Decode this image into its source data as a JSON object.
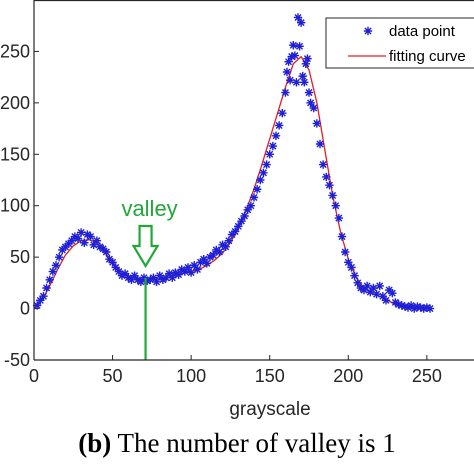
{
  "chart_data": {
    "type": "scatter",
    "title": "",
    "xlabel": "grayscale",
    "ylabel": "",
    "xlim": [
      0,
      280
    ],
    "ylim": [
      -50,
      300
    ],
    "x_ticks": [
      "0",
      "50",
      "100",
      "150",
      "200",
      "250"
    ],
    "y_ticks": [
      "-50",
      "0",
      "50",
      "100",
      "150",
      "200",
      "250"
    ],
    "grid": false,
    "legend_position": "top-right",
    "colors": {
      "data": "#1f1fd6",
      "fit": "#e02020",
      "annotation": "#22a83a",
      "axis": "#262626"
    },
    "series": [
      {
        "name": "data point",
        "marker": "asterisk",
        "x": [
          2,
          4,
          6,
          8,
          10,
          12,
          14,
          16,
          18,
          20,
          22,
          24,
          26,
          28,
          30,
          32,
          34,
          36,
          38,
          40,
          42,
          44,
          46,
          48,
          50,
          52,
          54,
          56,
          58,
          60,
          62,
          64,
          66,
          68,
          70,
          72,
          74,
          76,
          78,
          80,
          82,
          84,
          86,
          88,
          90,
          92,
          94,
          96,
          98,
          100,
          102,
          104,
          106,
          108,
          110,
          112,
          114,
          116,
          118,
          120,
          122,
          124,
          126,
          128,
          130,
          132,
          134,
          136,
          138,
          140,
          142,
          144,
          146,
          148,
          150,
          152,
          154,
          156,
          158,
          160,
          161,
          162,
          163,
          164,
          165,
          166,
          167,
          168,
          169,
          170,
          171,
          172,
          173,
          174,
          175,
          176,
          178,
          180,
          182,
          184,
          186,
          188,
          190,
          192,
          194,
          196,
          198,
          200,
          202,
          204,
          206,
          208,
          210,
          212,
          214,
          216,
          218,
          220,
          222,
          224,
          226,
          228,
          230,
          232,
          234,
          236,
          238,
          240,
          242,
          244,
          246,
          248,
          250,
          252
        ],
        "y": [
          3,
          8,
          12,
          20,
          28,
          36,
          42,
          50,
          57,
          60,
          63,
          66,
          70,
          68,
          74,
          64,
          72,
          70,
          62,
          66,
          60,
          58,
          55,
          48,
          45,
          40,
          36,
          32,
          34,
          30,
          28,
          32,
          28,
          26,
          30,
          27,
          28,
          30,
          26,
          32,
          28,
          30,
          34,
          30,
          35,
          33,
          38,
          36,
          40,
          35,
          42,
          38,
          45,
          48,
          44,
          50,
          52,
          57,
          55,
          62,
          60,
          66,
          72,
          75,
          80,
          85,
          90,
          96,
          100,
          108,
          116,
          125,
          132,
          140,
          150,
          158,
          168,
          178,
          190,
          210,
          230,
          240,
          222,
          245,
          256,
          246,
          220,
          283,
          255,
          278,
          226,
          220,
          238,
          243,
          210,
          200,
          195,
          180,
          160,
          140,
          128,
          120,
          110,
          100,
          88,
          70,
          55,
          45,
          40,
          32,
          25,
          20,
          18,
          22,
          16,
          20,
          14,
          22,
          12,
          8,
          18,
          15,
          6,
          4,
          3,
          2,
          1,
          3,
          0,
          2,
          1,
          0,
          1,
          0
        ]
      },
      {
        "name": "fitting curve",
        "style": "line",
        "x": [
          0,
          5,
          10,
          15,
          20,
          25,
          30,
          35,
          40,
          45,
          50,
          55,
          60,
          65,
          70,
          75,
          80,
          85,
          90,
          95,
          100,
          105,
          110,
          115,
          120,
          125,
          130,
          135,
          140,
          145,
          150,
          155,
          160,
          165,
          170,
          175,
          180,
          185,
          190,
          195,
          200,
          205,
          210,
          215,
          220,
          225,
          230,
          235,
          240,
          245,
          250
        ],
        "y": [
          0,
          8,
          22,
          38,
          52,
          61,
          66,
          67,
          64,
          55,
          45,
          37,
          32,
          29,
          28,
          28,
          29,
          30,
          32,
          34,
          36,
          38,
          42,
          47,
          54,
          64,
          78,
          96,
          116,
          140,
          165,
          190,
          215,
          238,
          245,
          232,
          200,
          155,
          110,
          75,
          48,
          30,
          20,
          15,
          12,
          8,
          4,
          2,
          1,
          1,
          0
        ]
      }
    ],
    "annotations": [
      {
        "text": "valley",
        "x": 71,
        "arrow": "down"
      }
    ]
  },
  "caption": {
    "label": "(b)",
    "text": "The number of valley is 1"
  }
}
